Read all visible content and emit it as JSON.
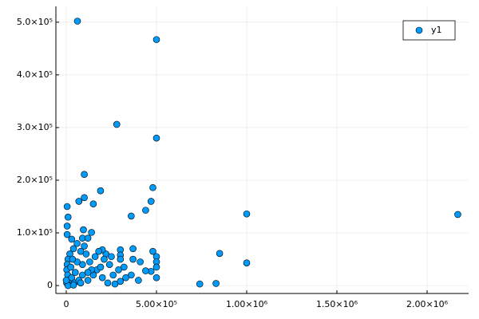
{
  "chart_data": {
    "type": "scatter",
    "xlim": [
      -57500,
      2230000
    ],
    "ylim": [
      -15000,
      530000
    ],
    "xticks": [
      0,
      {
        "value": 500000,
        "label": "5.00×10⁵"
      },
      {
        "value": 1000000,
        "label": "1.00×10⁶"
      },
      {
        "value": 1500000,
        "label": "1.50×10⁶"
      },
      {
        "value": 2000000,
        "label": "2.00×10⁶"
      }
    ],
    "yticks": [
      0,
      {
        "value": 100000,
        "label": "1.0×10⁵"
      },
      {
        "value": 200000,
        "label": "2.0×10⁵"
      },
      {
        "value": 300000,
        "label": "3.0×10⁵"
      },
      {
        "value": 400000,
        "label": "4.0×10⁵"
      },
      {
        "value": 500000,
        "label": "5.0×10⁵"
      }
    ],
    "grid": true,
    "legend": "top-right",
    "series": [
      {
        "name": "y1",
        "color": "#009af9",
        "x": [
          62000,
          500000,
          280000,
          500000,
          100000,
          480000,
          190000,
          100000,
          470000,
          70000,
          150000,
          5000,
          440000,
          360000,
          10000,
          1000000,
          2170000,
          5000,
          95000,
          140000,
          5000,
          30000,
          90000,
          120000,
          850000,
          1000000,
          740000,
          830000,
          500000,
          500000,
          500000,
          500000,
          480000,
          470000,
          440000,
          300000,
          300000,
          300000,
          320000,
          290000,
          260000,
          370000,
          370000,
          360000,
          410000,
          400000,
          220000,
          200000,
          210000,
          240000,
          180000,
          170000,
          160000,
          150000,
          130000,
          110000,
          100000,
          90000,
          80000,
          60000,
          40000,
          20000,
          10000,
          5000,
          3000,
          8000,
          15000,
          2000,
          30000,
          50000,
          45000,
          70000,
          60000,
          25000,
          35000,
          90000,
          120000,
          140000,
          200000,
          230000,
          270000,
          300000,
          330000,
          190000,
          250000,
          120000,
          80000,
          10000,
          40000,
          0
        ],
        "values": [
          502000,
          467000,
          306000,
          280000,
          211000,
          186000,
          180000,
          167000,
          160000,
          160000,
          155000,
          150000,
          143000,
          132000,
          130000,
          136000,
          135000,
          113000,
          106000,
          101000,
          97000,
          88000,
          90000,
          90000,
          61000,
          43000,
          3000,
          4000,
          55000,
          45000,
          35000,
          15000,
          65000,
          27000,
          28000,
          68000,
          58000,
          50000,
          35000,
          30000,
          20000,
          70000,
          50000,
          20000,
          45000,
          10000,
          60000,
          68000,
          50000,
          40000,
          65000,
          30000,
          55000,
          20000,
          45000,
          60000,
          75000,
          40000,
          65000,
          80000,
          70000,
          60000,
          50000,
          40000,
          30000,
          20000,
          10000,
          5000,
          15000,
          25000,
          5000,
          10000,
          45000,
          35000,
          50000,
          20000,
          10000,
          30000,
          15000,
          5000,
          3000,
          8000,
          15000,
          35000,
          55000,
          25000,
          5000,
          0,
          1000,
          10000
        ]
      }
    ]
  }
}
